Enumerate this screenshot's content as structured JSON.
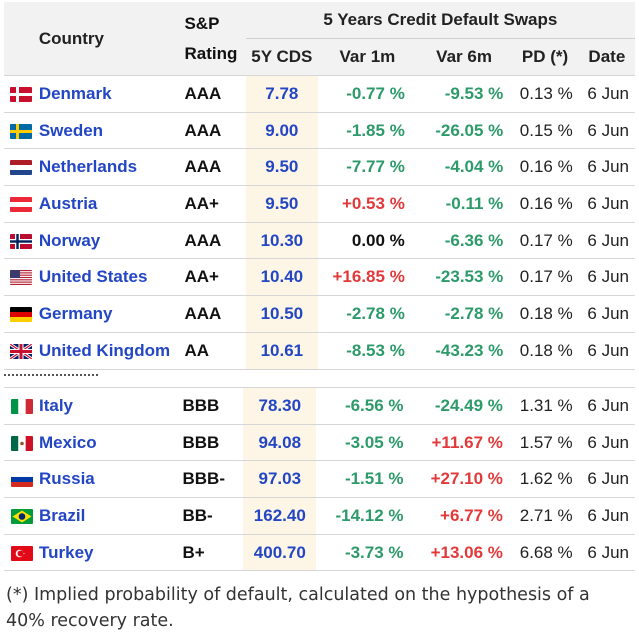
{
  "header": {
    "country": "Country",
    "sp_line1": "S&P",
    "sp_line2": "Rating",
    "group": "5 Years Credit Default Swaps",
    "cds": "5Y CDS",
    "var1m": "Var 1m",
    "var6m": "Var 6m",
    "pd": "PD (*)",
    "date": "Date"
  },
  "rows_top": [
    {
      "flag": "denmark-flag-icon",
      "country": "Denmark",
      "rating": "AAA",
      "cds": "7.78",
      "var1m": "-0.77 %",
      "var1m_sign": "neg",
      "var6m": "-9.53 %",
      "var6m_sign": "neg",
      "pd": "0.13 %",
      "date": "6 Jun"
    },
    {
      "flag": "sweden-flag-icon",
      "country": "Sweden",
      "rating": "AAA",
      "cds": "9.00",
      "var1m": "-1.85 %",
      "var1m_sign": "neg",
      "var6m": "-26.05 %",
      "var6m_sign": "neg",
      "pd": "0.15 %",
      "date": "6 Jun"
    },
    {
      "flag": "netherlands-flag-icon",
      "country": "Netherlands",
      "rating": "AAA",
      "cds": "9.50",
      "var1m": "-7.77 %",
      "var1m_sign": "neg",
      "var6m": "-4.04 %",
      "var6m_sign": "neg",
      "pd": "0.16 %",
      "date": "6 Jun"
    },
    {
      "flag": "austria-flag-icon",
      "country": "Austria",
      "rating": "AA+",
      "cds": "9.50",
      "var1m": "+0.53 %",
      "var1m_sign": "pos",
      "var6m": "-0.11 %",
      "var6m_sign": "neg",
      "pd": "0.16 %",
      "date": "6 Jun"
    },
    {
      "flag": "norway-flag-icon",
      "country": "Norway",
      "rating": "AAA",
      "cds": "10.30",
      "var1m": "0.00 %",
      "var1m_sign": "zero",
      "var6m": "-6.36 %",
      "var6m_sign": "neg",
      "pd": "0.17 %",
      "date": "6 Jun"
    },
    {
      "flag": "usa-flag-icon",
      "country": "United States",
      "rating": "AA+",
      "cds": "10.40",
      "var1m": "+16.85 %",
      "var1m_sign": "pos",
      "var6m": "-23.53 %",
      "var6m_sign": "neg",
      "pd": "0.17 %",
      "date": "6 Jun"
    },
    {
      "flag": "germany-flag-icon",
      "country": "Germany",
      "rating": "AAA",
      "cds": "10.50",
      "var1m": "-2.78 %",
      "var1m_sign": "neg",
      "var6m": "-2.78 %",
      "var6m_sign": "neg",
      "pd": "0.18 %",
      "date": "6 Jun"
    },
    {
      "flag": "uk-flag-icon",
      "country": "United Kingdom",
      "rating": "AA",
      "cds": "10.61",
      "var1m": "-8.53 %",
      "var1m_sign": "neg",
      "var6m": "-43.23 %",
      "var6m_sign": "neg",
      "pd": "0.18 %",
      "date": "6 Jun"
    }
  ],
  "rows_bottom": [
    {
      "flag": "italy-flag-icon",
      "country": "Italy",
      "rating": "BBB",
      "cds": "78.30",
      "var1m": "-6.56 %",
      "var1m_sign": "neg",
      "var6m": "-24.49 %",
      "var6m_sign": "neg",
      "pd": "1.31 %",
      "date": "6 Jun"
    },
    {
      "flag": "mexico-flag-icon",
      "country": "Mexico",
      "rating": "BBB",
      "cds": "94.08",
      "var1m": "-3.05 %",
      "var1m_sign": "neg",
      "var6m": "+11.67 %",
      "var6m_sign": "pos",
      "pd": "1.57 %",
      "date": "6 Jun"
    },
    {
      "flag": "russia-flag-icon",
      "country": "Russia",
      "rating": "BBB-",
      "cds": "97.03",
      "var1m": "-1.51 %",
      "var1m_sign": "neg",
      "var6m": "+27.10 %",
      "var6m_sign": "pos",
      "pd": "1.62 %",
      "date": "6 Jun"
    },
    {
      "flag": "brazil-flag-icon",
      "country": "Brazil",
      "rating": "BB-",
      "cds": "162.40",
      "var1m": "-14.12 %",
      "var1m_sign": "neg",
      "var6m": "+6.77 %",
      "var6m_sign": "pos",
      "pd": "2.71 %",
      "date": "6 Jun"
    },
    {
      "flag": "turkey-flag-icon",
      "country": "Turkey",
      "rating": "B+",
      "cds": "400.70",
      "var1m": "-3.73 %",
      "var1m_sign": "neg",
      "var6m": "+13.06 %",
      "var6m_sign": "pos",
      "pd": "6.68 %",
      "date": "6 Jun"
    }
  ],
  "footnote": "(*) Implied probability of default, calculated on the hypothesis of a 40% recovery rate.",
  "colors": {
    "link": "#2346c4",
    "positive": "#e23a3a",
    "negative": "#2d9a6a",
    "cds_bg": "#fdf6e6",
    "header_bg": "#f2f2f2"
  }
}
